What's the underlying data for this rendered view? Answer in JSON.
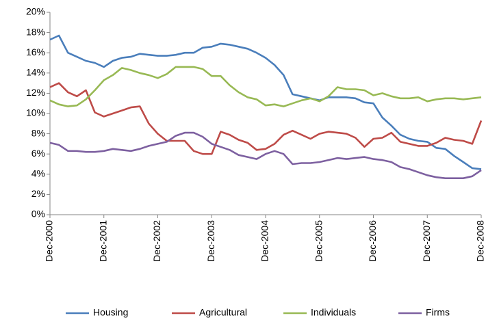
{
  "chart_data": {
    "type": "line",
    "categories": [
      "Dec-2000",
      null,
      null,
      null,
      null,
      null,
      "Dec-2001",
      null,
      null,
      null,
      null,
      null,
      "Dec-2002",
      null,
      null,
      null,
      null,
      null,
      "Dec-2003",
      null,
      null,
      null,
      null,
      null,
      "Dec-2004",
      null,
      null,
      null,
      null,
      null,
      "Dec-2005",
      null,
      null,
      null,
      null,
      null,
      "Dec-2006",
      null,
      null,
      null,
      null,
      null,
      "Dec-2007",
      null,
      null,
      null,
      null,
      null,
      "Dec-2008"
    ],
    "series": [
      {
        "name": "Housing",
        "color": "#4a7ebb",
        "values": [
          17.3,
          17.7,
          16.0,
          15.6,
          15.2,
          15.0,
          14.6,
          15.2,
          15.5,
          15.6,
          15.9,
          15.8,
          15.7,
          15.7,
          15.8,
          16.0,
          16.0,
          16.5,
          16.6,
          16.9,
          16.8,
          16.6,
          16.4,
          16.0,
          15.5,
          14.8,
          13.8,
          11.9,
          11.7,
          11.5,
          11.3,
          11.6,
          11.6,
          11.6,
          11.5,
          11.1,
          11.0,
          9.6,
          8.8,
          7.9,
          7.5,
          7.3,
          7.2,
          6.6,
          6.5,
          5.8,
          5.2,
          4.6,
          4.5
        ]
      },
      {
        "name": "Agricultural",
        "color": "#be4b48",
        "values": [
          12.6,
          13.0,
          12.1,
          11.7,
          12.3,
          10.1,
          9.7,
          10.0,
          10.3,
          10.6,
          10.7,
          9.0,
          8.0,
          7.3,
          7.3,
          7.3,
          6.3,
          6.0,
          6.0,
          8.2,
          7.9,
          7.4,
          7.1,
          6.4,
          6.5,
          7.0,
          7.9,
          8.3,
          7.9,
          7.5,
          8.0,
          8.2,
          8.1,
          8.0,
          7.6,
          6.7,
          7.5,
          7.6,
          8.1,
          7.2,
          7.0,
          6.8,
          6.8,
          7.1,
          7.6,
          7.4,
          7.3,
          7.0,
          9.3
        ]
      },
      {
        "name": "Individuals",
        "color": "#98b954",
        "values": [
          11.3,
          10.9,
          10.7,
          10.8,
          11.4,
          12.3,
          13.3,
          13.8,
          14.5,
          14.3,
          14.0,
          13.8,
          13.5,
          13.9,
          14.6,
          14.6,
          14.6,
          14.4,
          13.7,
          13.7,
          12.8,
          12.1,
          11.6,
          11.4,
          10.8,
          10.9,
          10.7,
          11.0,
          11.3,
          11.5,
          11.2,
          11.7,
          12.6,
          12.4,
          12.4,
          12.3,
          11.8,
          12.0,
          11.7,
          11.5,
          11.5,
          11.6,
          11.2,
          11.4,
          11.5,
          11.5,
          11.4,
          11.5,
          11.6
        ]
      },
      {
        "name": "Firms",
        "color": "#7d60a0",
        "values": [
          7.1,
          6.9,
          6.3,
          6.3,
          6.2,
          6.2,
          6.3,
          6.5,
          6.4,
          6.3,
          6.5,
          6.8,
          7.0,
          7.2,
          7.8,
          8.1,
          8.1,
          7.7,
          7.0,
          6.7,
          6.4,
          5.9,
          5.7,
          5.5,
          6.0,
          6.3,
          6.0,
          5.0,
          5.1,
          5.1,
          5.2,
          5.4,
          5.6,
          5.5,
          5.6,
          5.7,
          5.5,
          5.4,
          5.2,
          4.7,
          4.5,
          4.2,
          3.9,
          3.7,
          3.6,
          3.6,
          3.6,
          3.8,
          4.4
        ]
      }
    ],
    "ylim": [
      0,
      20
    ],
    "yticks": [
      {
        "value": 0,
        "label": "0%"
      },
      {
        "value": 2,
        "label": "2%"
      },
      {
        "value": 4,
        "label": "4%"
      },
      {
        "value": 6,
        "label": "6%"
      },
      {
        "value": 8,
        "label": "8%"
      },
      {
        "value": 10,
        "label": "10%"
      },
      {
        "value": 12,
        "label": "12%"
      },
      {
        "value": 14,
        "label": "14%"
      },
      {
        "value": 16,
        "label": "16%"
      },
      {
        "value": 18,
        "label": "18%"
      },
      {
        "value": 20,
        "label": "20%"
      }
    ],
    "grid": false,
    "legend": "bottom"
  }
}
